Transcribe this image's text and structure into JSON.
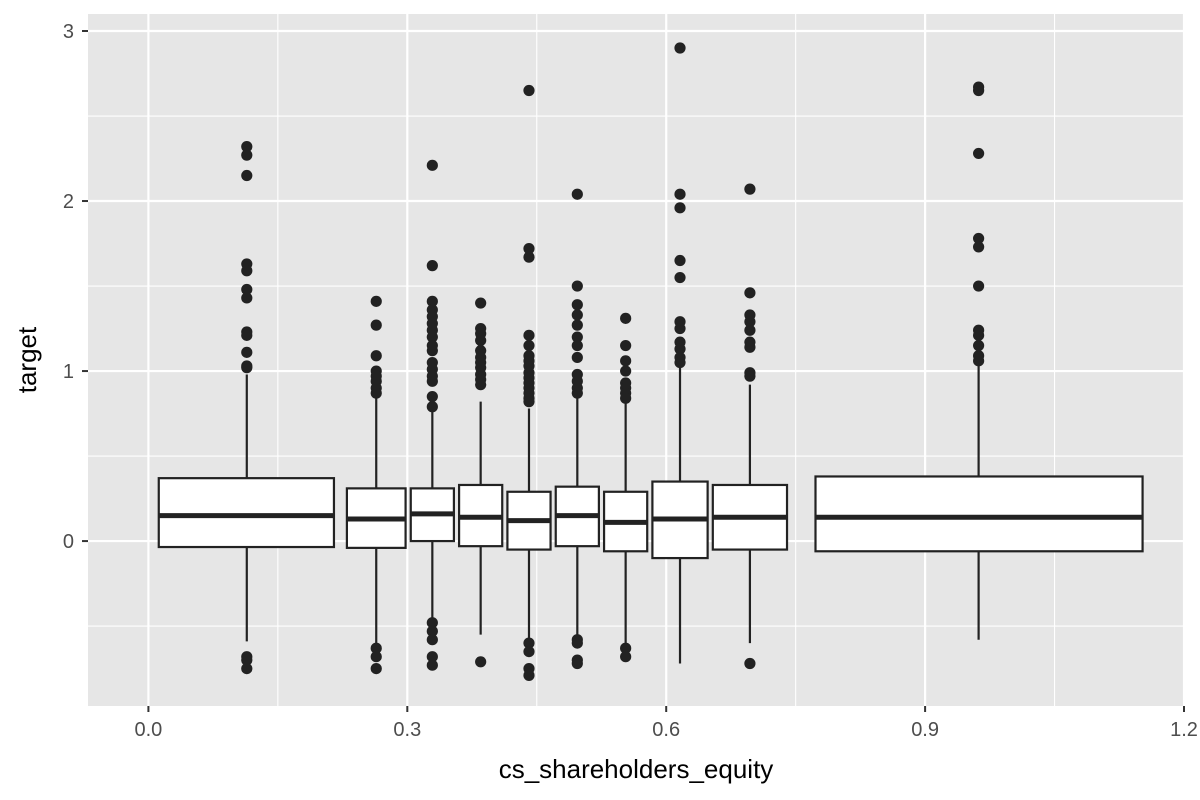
{
  "colors": {
    "panel_bg": "#e6e6e6",
    "grid_major": "#ffffff",
    "box_fill": "#ffffff",
    "box_stroke": "#222222",
    "tick_text": "#4d4d4d",
    "axis_title": "#000000"
  },
  "chart_data": {
    "type": "boxplot",
    "title": "",
    "xlabel": "cs_shareholders_equity",
    "ylabel": "target",
    "xlim": [
      -0.07,
      1.2
    ],
    "ylim": [
      -0.97,
      3.1
    ],
    "x_ticks": [
      0.0,
      0.3,
      0.6,
      0.9,
      1.2
    ],
    "x_tick_labels": [
      "0.0",
      "0.3",
      "0.6",
      "0.9",
      "1.2"
    ],
    "y_ticks": [
      0,
      1,
      2,
      3
    ],
    "y_tick_labels": [
      "0",
      "1",
      "2",
      "3"
    ],
    "grid": true,
    "legend": "none",
    "boxes": [
      {
        "xmin": 0.012,
        "xmax": 0.215,
        "x": 0.114,
        "lower_whisker": -0.59,
        "q1": -0.035,
        "median": 0.15,
        "q3": 0.37,
        "upper_whisker": 0.98,
        "outliers": [
          2.32,
          2.27,
          2.15,
          1.63,
          1.59,
          1.48,
          1.43,
          1.23,
          1.21,
          1.11,
          1.03,
          1.02,
          -0.68,
          -0.7,
          -0.75
        ]
      },
      {
        "xmin": 0.23,
        "xmax": 0.298,
        "x": 0.264,
        "lower_whisker": -0.6,
        "q1": -0.04,
        "median": 0.13,
        "q3": 0.31,
        "upper_whisker": 0.85,
        "outliers": [
          1.41,
          1.27,
          1.09,
          1.0,
          0.97,
          0.94,
          0.9,
          0.87,
          -0.63,
          -0.68,
          -0.75
        ]
      },
      {
        "xmin": 0.304,
        "xmax": 0.354,
        "x": 0.329,
        "lower_whisker": -0.48,
        "q1": 0.0,
        "median": 0.16,
        "q3": 0.31,
        "upper_whisker": 0.78,
        "outliers": [
          2.21,
          1.62,
          1.41,
          1.36,
          1.32,
          1.28,
          1.24,
          1.2,
          1.15,
          1.12,
          1.05,
          1.01,
          0.97,
          0.94,
          0.85,
          0.79,
          -0.48,
          -0.53,
          -0.58,
          -0.68,
          -0.73
        ]
      },
      {
        "xmin": 0.36,
        "xmax": 0.41,
        "x": 0.385,
        "lower_whisker": -0.55,
        "q1": -0.03,
        "median": 0.14,
        "q3": 0.33,
        "upper_whisker": 0.82,
        "outliers": [
          1.4,
          1.25,
          1.22,
          1.18,
          1.12,
          1.08,
          1.05,
          1.02,
          0.98,
          0.95,
          0.92,
          -0.71
        ]
      },
      {
        "xmin": 0.416,
        "xmax": 0.466,
        "x": 0.441,
        "lower_whisker": -0.6,
        "q1": -0.05,
        "median": 0.12,
        "q3": 0.29,
        "upper_whisker": 0.78,
        "outliers": [
          2.65,
          1.72,
          1.67,
          1.21,
          1.15,
          1.09,
          1.06,
          1.03,
          0.99,
          0.96,
          0.93,
          0.9,
          0.87,
          0.84,
          0.82,
          -0.6,
          -0.65,
          -0.75,
          -0.79
        ]
      },
      {
        "xmin": 0.472,
        "xmax": 0.522,
        "x": 0.497,
        "lower_whisker": -0.56,
        "q1": -0.03,
        "median": 0.15,
        "q3": 0.32,
        "upper_whisker": 0.85,
        "outliers": [
          2.04,
          1.5,
          1.39,
          1.33,
          1.27,
          1.2,
          1.15,
          1.08,
          0.98,
          0.94,
          0.9,
          0.87,
          -0.58,
          -0.6,
          -0.7,
          -0.72
        ]
      },
      {
        "xmin": 0.528,
        "xmax": 0.578,
        "x": 0.553,
        "lower_whisker": -0.6,
        "q1": -0.06,
        "median": 0.11,
        "q3": 0.29,
        "upper_whisker": 0.84,
        "outliers": [
          1.31,
          1.15,
          1.06,
          1.0,
          0.93,
          0.9,
          0.87,
          0.84,
          -0.63,
          -0.68
        ]
      },
      {
        "xmin": 0.584,
        "xmax": 0.648,
        "x": 0.616,
        "lower_whisker": -0.72,
        "q1": -0.1,
        "median": 0.13,
        "q3": 0.35,
        "upper_whisker": 1.05,
        "outliers": [
          2.9,
          2.04,
          1.96,
          1.65,
          1.55,
          1.29,
          1.25,
          1.17,
          1.13,
          1.08,
          1.05
        ]
      },
      {
        "xmin": 0.654,
        "xmax": 0.74,
        "x": 0.697,
        "lower_whisker": -0.6,
        "q1": -0.05,
        "median": 0.14,
        "q3": 0.33,
        "upper_whisker": 0.92,
        "outliers": [
          2.07,
          1.46,
          1.33,
          1.29,
          1.24,
          1.17,
          1.14,
          0.99,
          0.97,
          -0.72
        ]
      },
      {
        "xmin": 0.773,
        "xmax": 1.152,
        "x": 0.962,
        "lower_whisker": -0.58,
        "q1": -0.06,
        "median": 0.14,
        "q3": 0.38,
        "upper_whisker": 1.03,
        "outliers": [
          2.67,
          2.65,
          2.28,
          1.78,
          1.73,
          1.5,
          1.24,
          1.21,
          1.15,
          1.09,
          1.06
        ]
      }
    ]
  }
}
